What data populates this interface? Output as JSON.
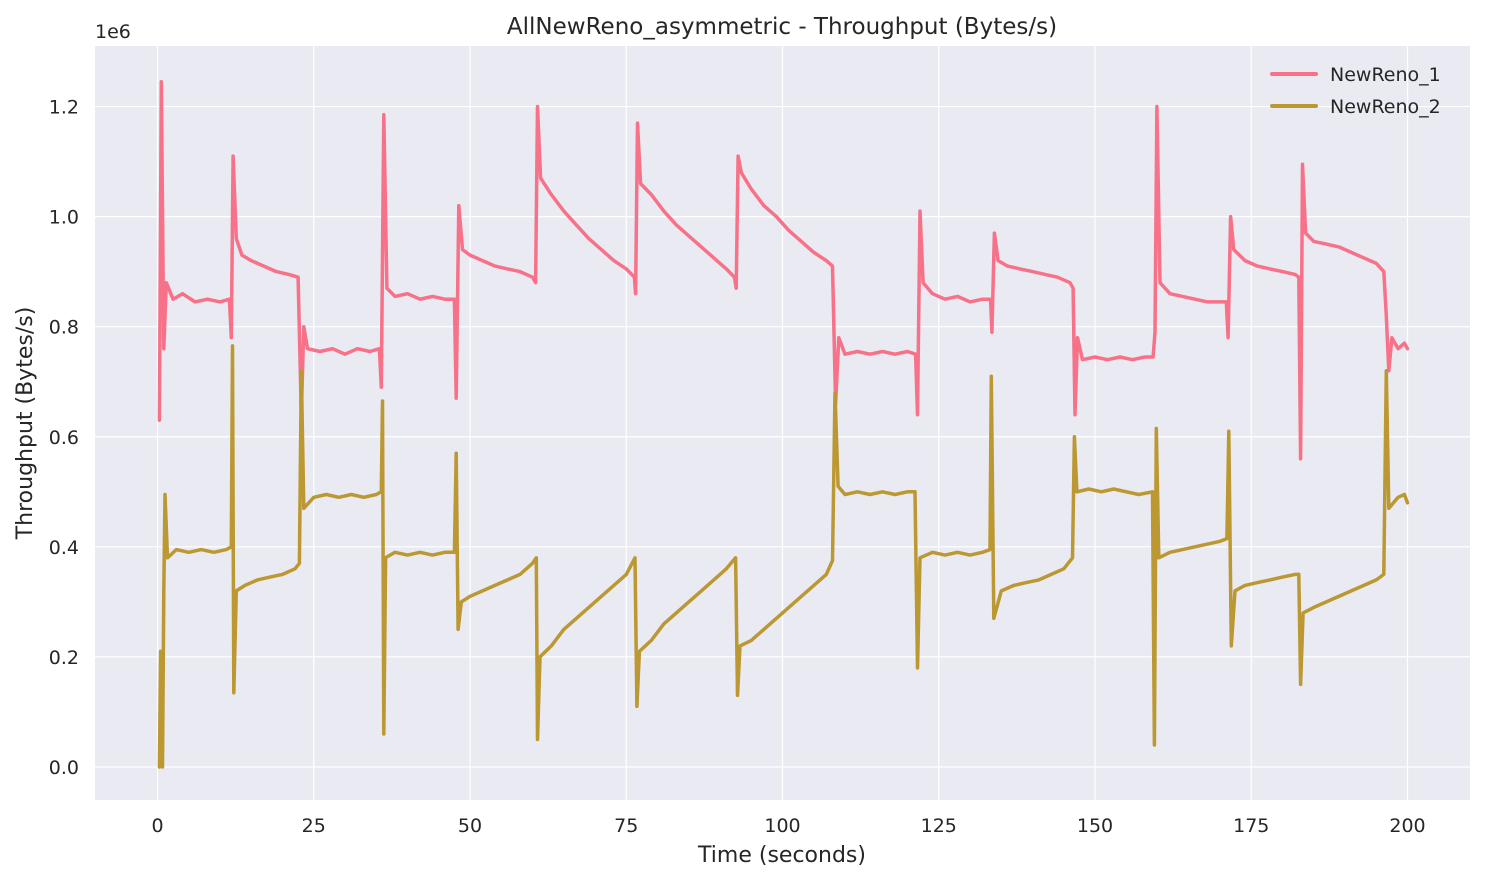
{
  "chart_data": {
    "type": "line",
    "title": "AllNewReno_asymmetric - Throughput (Bytes/s)",
    "xlabel": "Time (seconds)",
    "ylabel": "Throughput (Bytes/s)",
    "y_offset_label": "1e6",
    "xlim": [
      -10,
      210
    ],
    "ylim": [
      -60000,
      1310000
    ],
    "x_ticks": [
      0,
      25,
      50,
      75,
      100,
      125,
      150,
      175,
      200
    ],
    "x_tick_labels": [
      "0",
      "25",
      "50",
      "75",
      "100",
      "125",
      "150",
      "175",
      "200"
    ],
    "y_ticks": [
      0,
      200000,
      400000,
      600000,
      800000,
      1000000,
      1200000
    ],
    "y_tick_labels": [
      "0.0",
      "0.2",
      "0.4",
      "0.6",
      "0.8",
      "1.0",
      "1.2"
    ],
    "grid": true,
    "legend_position": "top-right",
    "series": [
      {
        "name": "NewReno_1",
        "color": "#f77189",
        "points": [
          [
            0.3,
            630000
          ],
          [
            0.6,
            1245000
          ],
          [
            1.0,
            760000
          ],
          [
            1.4,
            880000
          ],
          [
            2.5,
            850000
          ],
          [
            4,
            860000
          ],
          [
            6,
            845000
          ],
          [
            8,
            850000
          ],
          [
            10,
            845000
          ],
          [
            11.5,
            850000
          ],
          [
            11.8,
            780000
          ],
          [
            12.1,
            1110000
          ],
          [
            12.6,
            960000
          ],
          [
            13.5,
            930000
          ],
          [
            15,
            920000
          ],
          [
            17,
            910000
          ],
          [
            19,
            900000
          ],
          [
            21,
            895000
          ],
          [
            22.5,
            890000
          ],
          [
            23.0,
            640000
          ],
          [
            23.4,
            800000
          ],
          [
            24,
            760000
          ],
          [
            26,
            755000
          ],
          [
            28,
            760000
          ],
          [
            30,
            750000
          ],
          [
            32,
            760000
          ],
          [
            34,
            755000
          ],
          [
            35.5,
            760000
          ],
          [
            35.8,
            690000
          ],
          [
            36.2,
            1185000
          ],
          [
            36.7,
            870000
          ],
          [
            38,
            855000
          ],
          [
            40,
            860000
          ],
          [
            42,
            850000
          ],
          [
            44,
            855000
          ],
          [
            46,
            850000
          ],
          [
            47.5,
            850000
          ],
          [
            47.8,
            670000
          ],
          [
            48.2,
            1020000
          ],
          [
            48.8,
            940000
          ],
          [
            50,
            930000
          ],
          [
            52,
            920000
          ],
          [
            54,
            910000
          ],
          [
            56,
            905000
          ],
          [
            58,
            900000
          ],
          [
            60,
            890000
          ],
          [
            60.5,
            880000
          ],
          [
            60.8,
            1200000
          ],
          [
            61.3,
            1070000
          ],
          [
            63,
            1040000
          ],
          [
            65,
            1010000
          ],
          [
            67,
            985000
          ],
          [
            69,
            960000
          ],
          [
            71,
            940000
          ],
          [
            73,
            920000
          ],
          [
            75,
            905000
          ],
          [
            76.3,
            890000
          ],
          [
            76.5,
            860000
          ],
          [
            76.8,
            1170000
          ],
          [
            77.3,
            1060000
          ],
          [
            79,
            1040000
          ],
          [
            81,
            1010000
          ],
          [
            83,
            985000
          ],
          [
            85,
            965000
          ],
          [
            87,
            945000
          ],
          [
            89,
            925000
          ],
          [
            91,
            905000
          ],
          [
            92.3,
            890000
          ],
          [
            92.6,
            870000
          ],
          [
            92.9,
            1110000
          ],
          [
            93.4,
            1080000
          ],
          [
            95,
            1050000
          ],
          [
            97,
            1020000
          ],
          [
            99,
            1000000
          ],
          [
            101,
            975000
          ],
          [
            103,
            955000
          ],
          [
            105,
            935000
          ],
          [
            107,
            920000
          ],
          [
            108,
            910000
          ],
          [
            108.5,
            660000
          ],
          [
            109,
            780000
          ],
          [
            110,
            750000
          ],
          [
            112,
            755000
          ],
          [
            114,
            750000
          ],
          [
            116,
            755000
          ],
          [
            118,
            750000
          ],
          [
            120,
            755000
          ],
          [
            121.3,
            750000
          ],
          [
            121.6,
            640000
          ],
          [
            122,
            1010000
          ],
          [
            122.5,
            880000
          ],
          [
            124,
            860000
          ],
          [
            126,
            850000
          ],
          [
            128,
            855000
          ],
          [
            130,
            845000
          ],
          [
            132,
            850000
          ],
          [
            133.3,
            850000
          ],
          [
            133.5,
            790000
          ],
          [
            133.9,
            970000
          ],
          [
            134.5,
            920000
          ],
          [
            136,
            910000
          ],
          [
            138,
            905000
          ],
          [
            140,
            900000
          ],
          [
            142,
            895000
          ],
          [
            144,
            890000
          ],
          [
            146,
            880000
          ],
          [
            146.5,
            870000
          ],
          [
            146.8,
            640000
          ],
          [
            147.2,
            780000
          ],
          [
            148,
            740000
          ],
          [
            150,
            745000
          ],
          [
            152,
            740000
          ],
          [
            154,
            745000
          ],
          [
            156,
            740000
          ],
          [
            158,
            745000
          ],
          [
            159.3,
            745000
          ],
          [
            159.6,
            790000
          ],
          [
            159.9,
            1200000
          ],
          [
            160.4,
            880000
          ],
          [
            162,
            860000
          ],
          [
            164,
            855000
          ],
          [
            166,
            850000
          ],
          [
            168,
            845000
          ],
          [
            170,
            845000
          ],
          [
            171,
            845000
          ],
          [
            171.3,
            780000
          ],
          [
            171.7,
            1000000
          ],
          [
            172.2,
            940000
          ],
          [
            174,
            920000
          ],
          [
            176,
            910000
          ],
          [
            178,
            905000
          ],
          [
            180,
            900000
          ],
          [
            182,
            895000
          ],
          [
            182.6,
            890000
          ],
          [
            182.9,
            560000
          ],
          [
            183.2,
            1095000
          ],
          [
            183.7,
            970000
          ],
          [
            185,
            955000
          ],
          [
            187,
            950000
          ],
          [
            189,
            945000
          ],
          [
            191,
            935000
          ],
          [
            193,
            925000
          ],
          [
            195,
            915000
          ],
          [
            196.2,
            900000
          ],
          [
            196.6,
            820000
          ],
          [
            197,
            720000
          ],
          [
            197.5,
            780000
          ],
          [
            198.5,
            760000
          ],
          [
            199.5,
            770000
          ],
          [
            200,
            760000
          ]
        ]
      },
      {
        "name": "NewReno_2",
        "color": "#bb9832",
        "points": [
          [
            0.3,
            0
          ],
          [
            0.5,
            210000
          ],
          [
            0.8,
            0
          ],
          [
            1.0,
            320000
          ],
          [
            1.2,
            495000
          ],
          [
            1.6,
            380000
          ],
          [
            3,
            395000
          ],
          [
            5,
            390000
          ],
          [
            7,
            395000
          ],
          [
            9,
            390000
          ],
          [
            11,
            395000
          ],
          [
            11.8,
            400000
          ],
          [
            12.0,
            765000
          ],
          [
            12.2,
            135000
          ],
          [
            12.6,
            320000
          ],
          [
            14,
            330000
          ],
          [
            16,
            340000
          ],
          [
            18,
            345000
          ],
          [
            20,
            350000
          ],
          [
            22,
            360000
          ],
          [
            22.7,
            370000
          ],
          [
            23.0,
            720000
          ],
          [
            23.4,
            470000
          ],
          [
            25,
            490000
          ],
          [
            27,
            495000
          ],
          [
            29,
            490000
          ],
          [
            31,
            495000
          ],
          [
            33,
            490000
          ],
          [
            35,
            495000
          ],
          [
            35.8,
            500000
          ],
          [
            36.0,
            665000
          ],
          [
            36.2,
            60000
          ],
          [
            36.5,
            380000
          ],
          [
            38,
            390000
          ],
          [
            40,
            385000
          ],
          [
            42,
            390000
          ],
          [
            44,
            385000
          ],
          [
            46,
            390000
          ],
          [
            47.5,
            390000
          ],
          [
            47.8,
            570000
          ],
          [
            48.1,
            250000
          ],
          [
            48.6,
            300000
          ],
          [
            50,
            310000
          ],
          [
            52,
            320000
          ],
          [
            54,
            330000
          ],
          [
            56,
            340000
          ],
          [
            58,
            350000
          ],
          [
            60,
            370000
          ],
          [
            60.6,
            380000
          ],
          [
            60.8,
            50000
          ],
          [
            61.2,
            200000
          ],
          [
            63,
            220000
          ],
          [
            65,
            250000
          ],
          [
            67,
            270000
          ],
          [
            69,
            290000
          ],
          [
            71,
            310000
          ],
          [
            73,
            330000
          ],
          [
            75,
            350000
          ],
          [
            76.4,
            380000
          ],
          [
            76.7,
            110000
          ],
          [
            77.1,
            210000
          ],
          [
            79,
            230000
          ],
          [
            81,
            260000
          ],
          [
            83,
            280000
          ],
          [
            85,
            300000
          ],
          [
            87,
            320000
          ],
          [
            89,
            340000
          ],
          [
            91,
            360000
          ],
          [
            92.5,
            380000
          ],
          [
            92.8,
            130000
          ],
          [
            93.2,
            220000
          ],
          [
            95,
            230000
          ],
          [
            97,
            250000
          ],
          [
            99,
            270000
          ],
          [
            101,
            290000
          ],
          [
            103,
            310000
          ],
          [
            105,
            330000
          ],
          [
            107,
            350000
          ],
          [
            108,
            375000
          ],
          [
            108.4,
            680000
          ],
          [
            108.9,
            510000
          ],
          [
            110,
            495000
          ],
          [
            112,
            500000
          ],
          [
            114,
            495000
          ],
          [
            116,
            500000
          ],
          [
            118,
            495000
          ],
          [
            120,
            500000
          ],
          [
            121.2,
            500000
          ],
          [
            121.6,
            180000
          ],
          [
            122,
            380000
          ],
          [
            124,
            390000
          ],
          [
            126,
            385000
          ],
          [
            128,
            390000
          ],
          [
            130,
            385000
          ],
          [
            132,
            390000
          ],
          [
            133.2,
            395000
          ],
          [
            133.4,
            710000
          ],
          [
            133.8,
            270000
          ],
          [
            135,
            320000
          ],
          [
            137,
            330000
          ],
          [
            139,
            335000
          ],
          [
            141,
            340000
          ],
          [
            143,
            350000
          ],
          [
            145,
            360000
          ],
          [
            146.4,
            380000
          ],
          [
            146.7,
            600000
          ],
          [
            147.1,
            500000
          ],
          [
            149,
            505000
          ],
          [
            151,
            500000
          ],
          [
            153,
            505000
          ],
          [
            155,
            500000
          ],
          [
            157,
            495000
          ],
          [
            159.2,
            500000
          ],
          [
            159.5,
            40000
          ],
          [
            159.8,
            615000
          ],
          [
            160.2,
            380000
          ],
          [
            162,
            390000
          ],
          [
            164,
            395000
          ],
          [
            166,
            400000
          ],
          [
            168,
            405000
          ],
          [
            170,
            410000
          ],
          [
            171.1,
            415000
          ],
          [
            171.4,
            610000
          ],
          [
            171.8,
            220000
          ],
          [
            172.4,
            320000
          ],
          [
            174,
            330000
          ],
          [
            176,
            335000
          ],
          [
            178,
            340000
          ],
          [
            180,
            345000
          ],
          [
            182,
            350000
          ],
          [
            182.6,
            350000
          ],
          [
            182.9,
            150000
          ],
          [
            183.3,
            280000
          ],
          [
            185,
            290000
          ],
          [
            187,
            300000
          ],
          [
            189,
            310000
          ],
          [
            191,
            320000
          ],
          [
            193,
            330000
          ],
          [
            195,
            340000
          ],
          [
            196.2,
            350000
          ],
          [
            196.6,
            720000
          ],
          [
            197,
            470000
          ],
          [
            198.5,
            490000
          ],
          [
            199.5,
            495000
          ],
          [
            200,
            480000
          ]
        ]
      }
    ]
  }
}
